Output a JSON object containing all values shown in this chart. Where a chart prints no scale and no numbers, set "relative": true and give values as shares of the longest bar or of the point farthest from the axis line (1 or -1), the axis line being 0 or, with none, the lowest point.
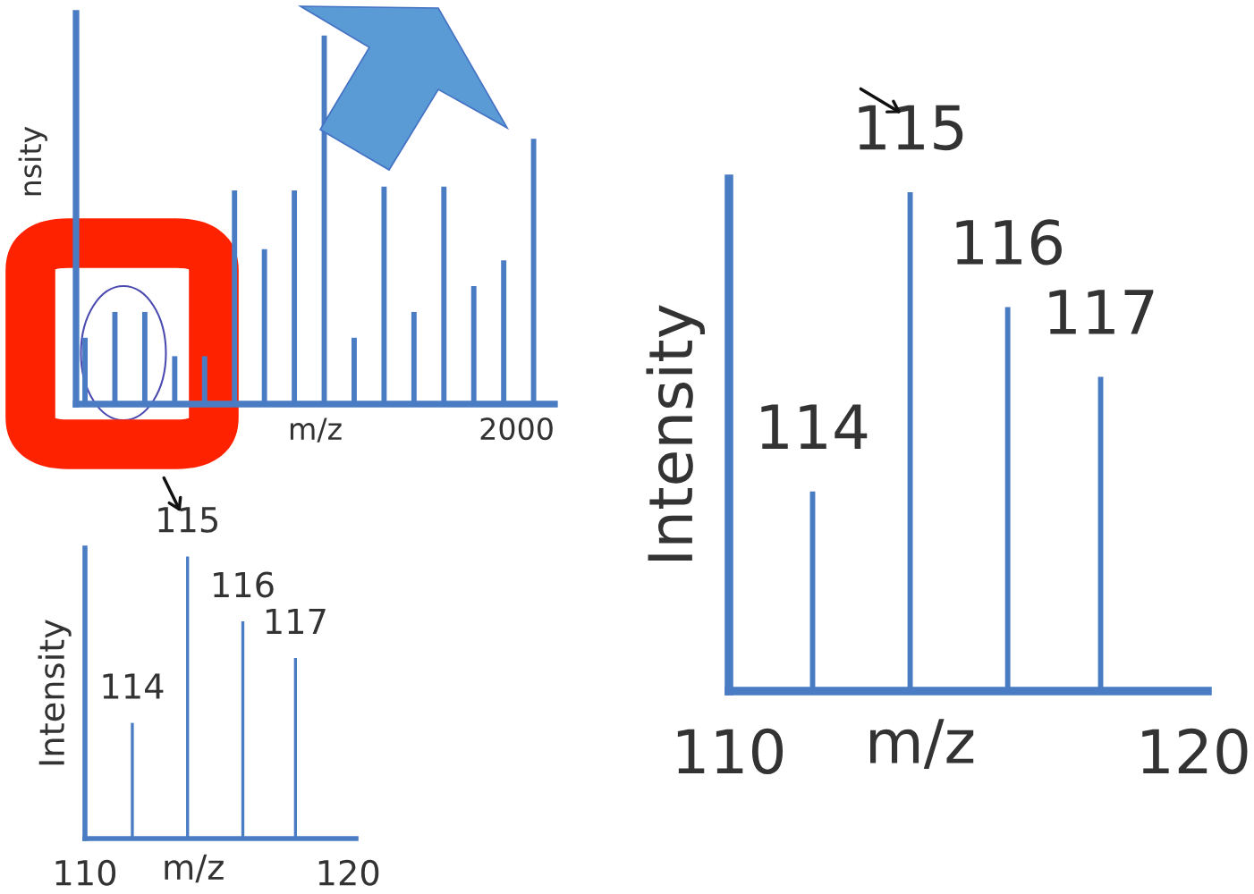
{
  "chart_data": [
    {
      "type": "bar",
      "relative": true,
      "xlabel": "m/z",
      "ylabel": "nsity",
      "categories": [
        null,
        null,
        null,
        null,
        null,
        null,
        null,
        null,
        null,
        null,
        null,
        null,
        null,
        null,
        null,
        null
      ],
      "series": [
        {
          "color": "#4a7cc4",
          "values": [
            0.18,
            0.25,
            0.25,
            0.13,
            0.13,
            0.58,
            0.42,
            0.58,
            1,
            0.18,
            0.59,
            0.25,
            0.59,
            0.32,
            0.39,
            0.72
          ]
        }
      ],
      "annotations": [
        "2000"
      ],
      "grid": false,
      "legend": false
    },
    {
      "type": "bar",
      "relative": true,
      "xlabel": "m/z",
      "ylabel": "Intensity",
      "x": [
        111.8,
        113.9,
        116.0,
        118.0
      ],
      "series": [
        {
          "color": "#4a7cc4",
          "values": [
            0.41,
            1,
            0.77,
            0.64
          ]
        }
      ],
      "xlim": [
        110,
        120.3
      ],
      "xticks": [
        110,
        120
      ],
      "grid": false,
      "legend": false,
      "annotations": [
        {
          "text": "114",
          "x": 111.8,
          "y": 0.41
        },
        {
          "text": "115",
          "x": 113.9,
          "y": 1
        },
        {
          "text": "116",
          "x": 116.0,
          "y": 0.77
        },
        {
          "text": "117",
          "x": 118.0,
          "y": 0.64
        }
      ]
    },
    {
      "type": "bar",
      "relative": true,
      "xlabel": "m/z",
      "ylabel": "Intensity",
      "x": [
        111.8,
        113.9,
        116.0,
        118.0
      ],
      "series": [
        {
          "color": "#4a7cc4",
          "values": [
            0.4,
            1,
            0.77,
            0.63
          ]
        }
      ],
      "xlim": [
        110,
        120.3
      ],
      "xticks": [
        110,
        120
      ],
      "grid": false,
      "legend": false,
      "annotations": [
        {
          "text": "114",
          "x": 111.8,
          "y": 0.4
        },
        {
          "text": "115",
          "x": 113.9,
          "y": 1
        },
        {
          "text": "116",
          "x": 116.0,
          "y": 0.77
        },
        {
          "text": "117",
          "x": 118.0,
          "y": 0.63
        }
      ]
    }
  ]
}
